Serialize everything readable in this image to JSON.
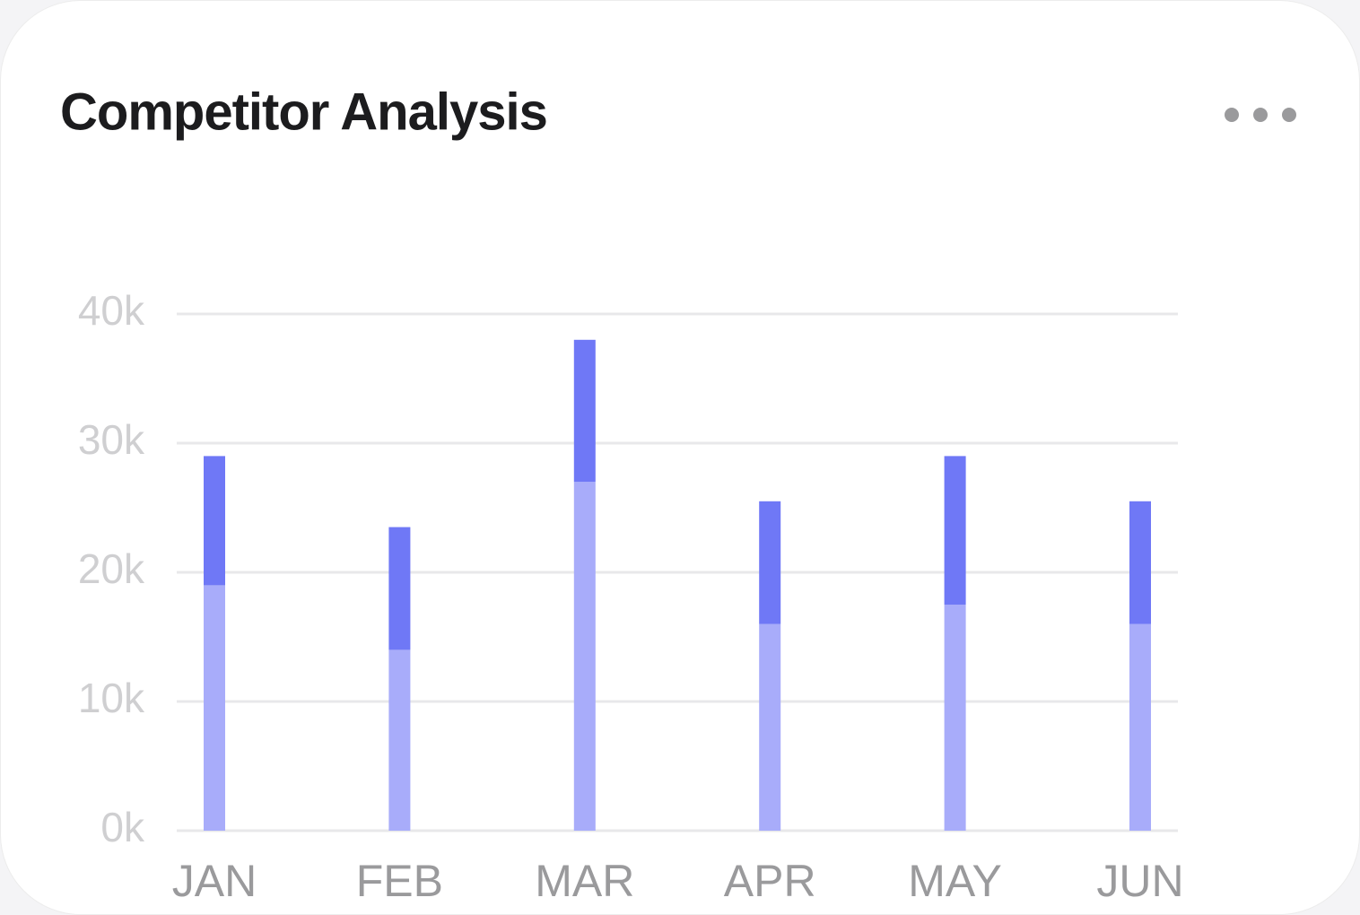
{
  "chart_data": {
    "type": "stacked-bar",
    "title": "Competitor Analysis",
    "categories": [
      "JAN",
      "FEB",
      "MAR",
      "APR",
      "MAY",
      "JUN"
    ],
    "series": [
      {
        "color": "#a8acfa",
        "values": [
          19000,
          14000,
          27000,
          16000,
          17500,
          16000
        ]
      },
      {
        "color": "#6f78f6",
        "values": [
          10000,
          9500,
          11000,
          9500,
          11500,
          9500
        ]
      }
    ],
    "ylim": [
      0,
      40000
    ],
    "yticks": [
      {
        "value": 0,
        "label": "0k"
      },
      {
        "value": 10000,
        "label": "10k"
      },
      {
        "value": 20000,
        "label": "20k"
      },
      {
        "value": 30000,
        "label": "30k"
      },
      {
        "value": 40000,
        "label": "40k"
      }
    ],
    "grid": true
  }
}
